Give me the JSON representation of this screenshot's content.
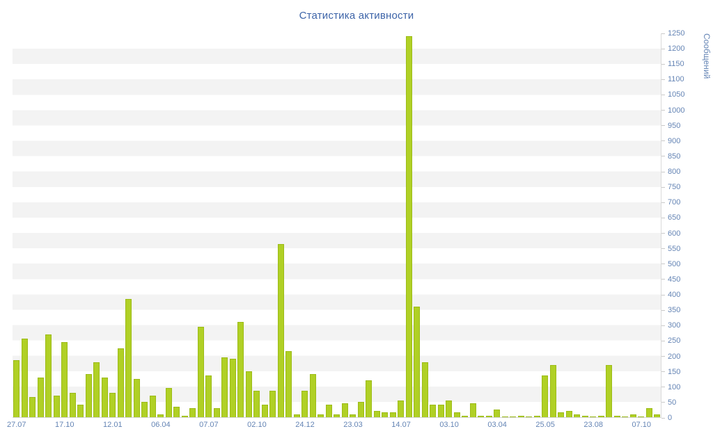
{
  "chart_data": {
    "type": "bar",
    "title": "Статистика активности",
    "ylabel": "Сообщений",
    "xlabel": "",
    "ylim": [
      0,
      1250
    ],
    "ytick_step": 50,
    "grid": "alternating-horizontal-stripes",
    "legend": "none",
    "x_labels": [
      "27.07",
      "17.10",
      "12.01",
      "06.04",
      "07.07",
      "02.10",
      "24.12",
      "23.03",
      "14.07",
      "03.10",
      "03.04",
      "25.05",
      "23.08",
      "07.10"
    ],
    "label_every_n_bars": 6,
    "values": [
      185,
      255,
      65,
      130,
      270,
      70,
      245,
      80,
      40,
      140,
      180,
      130,
      80,
      225,
      385,
      125,
      50,
      70,
      10,
      95,
      35,
      5,
      30,
      295,
      135,
      30,
      195,
      190,
      310,
      150,
      85,
      40,
      85,
      565,
      215,
      10,
      85,
      140,
      10,
      40,
      10,
      45,
      10,
      50,
      120,
      20,
      15,
      15,
      55,
      1240,
      360,
      180,
      40,
      40,
      55,
      15,
      5,
      45,
      5,
      5,
      25,
      3,
      3,
      5,
      3,
      5,
      135,
      170,
      15,
      20,
      10,
      5,
      3,
      5,
      170,
      5,
      3,
      10,
      3,
      30,
      10
    ],
    "colors": {
      "bar": "#b0d025",
      "bar_border": "#9cbb18",
      "axis_text": "#6585b5",
      "title_text": "#3d64a8",
      "stripe": "#f3f3f3",
      "background": "#ffffff"
    }
  }
}
